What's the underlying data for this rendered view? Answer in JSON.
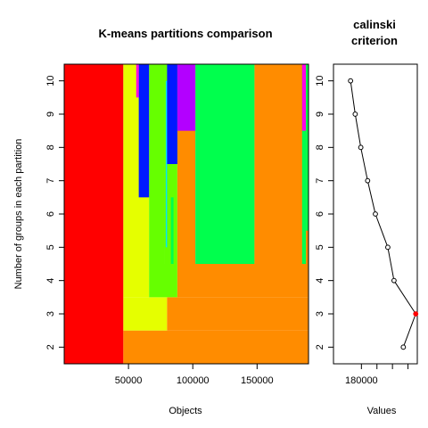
{
  "chart_data": [
    {
      "type": "heatmap",
      "title": "K-means partitions comparison",
      "xlabel": "Objects",
      "ylabel": "Number of groups in each partition",
      "xlim": [
        0,
        190000
      ],
      "ylim": [
        1.5,
        10.5
      ],
      "x_ticks": [
        50000,
        100000,
        150000
      ],
      "x_tick_labels": [
        "50000",
        "100000",
        "150000"
      ],
      "y_ticks": [
        2,
        3,
        4,
        5,
        6,
        7,
        8,
        9,
        10
      ],
      "y_tick_labels": [
        "2",
        "3",
        "4",
        "5",
        "6",
        "7",
        "8",
        "9",
        "10"
      ],
      "colors": {
        "red": "#ff0000",
        "orange": "#ff8c00",
        "yellow": "#e5ff00",
        "lime": "#66ff00",
        "green": "#00ff4d",
        "cyan": "#00e5ff",
        "blue": "#0019ff",
        "purple": "#b300ff",
        "magenta": "#ff00e6"
      },
      "cells": [
        {
          "x0": 0,
          "x1": 46000,
          "y0": 1.5,
          "y1": 10.5,
          "color": "red"
        },
        {
          "x0": 46000,
          "x1": 190000,
          "y0": 1.5,
          "y1": 2.5,
          "color": "orange"
        },
        {
          "x0": 46000,
          "x1": 80000,
          "y0": 2.5,
          "y1": 3.5,
          "color": "yellow"
        },
        {
          "x0": 80000,
          "x1": 190000,
          "y0": 2.5,
          "y1": 3.5,
          "color": "orange"
        },
        {
          "x0": 46000,
          "x1": 66000,
          "y0": 3.5,
          "y1": 4.5,
          "color": "yellow"
        },
        {
          "x0": 66000,
          "x1": 88000,
          "y0": 3.5,
          "y1": 4.5,
          "color": "lime"
        },
        {
          "x0": 88000,
          "x1": 190000,
          "y0": 3.5,
          "y1": 4.5,
          "color": "orange"
        },
        {
          "x0": 46000,
          "x1": 66000,
          "y0": 4.5,
          "y1": 10.5,
          "color": "yellow"
        },
        {
          "x0": 66000,
          "x1": 78000,
          "y0": 4.5,
          "y1": 10.5,
          "color": "lime"
        },
        {
          "x0": 78000,
          "x1": 88000,
          "y0": 4.5,
          "y1": 10.5,
          "color": "lime"
        },
        {
          "x0": 88000,
          "x1": 102000,
          "y0": 4.5,
          "y1": 10.5,
          "color": "orange"
        },
        {
          "x0": 102000,
          "x1": 148000,
          "y0": 4.5,
          "y1": 10.5,
          "color": "green"
        },
        {
          "x0": 148000,
          "x1": 186000,
          "y0": 4.5,
          "y1": 10.5,
          "color": "orange"
        },
        {
          "x0": 186000,
          "x1": 190000,
          "y0": 4.5,
          "y1": 10.5,
          "color": "orange"
        },
        {
          "x0": 58000,
          "x1": 66000,
          "y0": 6.5,
          "y1": 10.5,
          "color": "blue"
        },
        {
          "x0": 56000,
          "x1": 58000,
          "y0": 9.5,
          "y1": 10.5,
          "color": "magenta"
        },
        {
          "x0": 79000,
          "x1": 80000,
          "y0": 5.0,
          "y1": 10.0,
          "color": "cyan"
        },
        {
          "x0": 80000,
          "x1": 88000,
          "y0": 7.5,
          "y1": 10.5,
          "color": "blue"
        },
        {
          "x0": 88000,
          "x1": 102000,
          "y0": 8.5,
          "y1": 10.5,
          "color": "purple"
        },
        {
          "x0": 83000,
          "x1": 85000,
          "y0": 4.5,
          "y1": 6.5,
          "color": "green"
        },
        {
          "x0": 148000,
          "x1": 186000,
          "y0": 4.5,
          "y1": 5.5,
          "color": "orange"
        },
        {
          "x0": 185000,
          "x1": 188000,
          "y0": 4.5,
          "y1": 10.5,
          "color": "green"
        },
        {
          "x0": 185000,
          "x1": 188000,
          "y0": 8.5,
          "y1": 10.5,
          "color": "magenta"
        },
        {
          "x0": 188000,
          "x1": 190000,
          "y0": 5.5,
          "y1": 10.5,
          "color": "green"
        }
      ]
    },
    {
      "type": "line",
      "title": "calinski criterion",
      "title_lines": [
        "calinski",
        "criterion"
      ],
      "xlabel": "Values",
      "ylabel": "",
      "xlim": [
        171000,
        198000
      ],
      "ylim": [
        1.5,
        10.5
      ],
      "x_ticks": [
        180000,
        185000,
        190000,
        195000
      ],
      "x_tick_labels": [
        "180000"
      ],
      "y_ticks": [
        2,
        3,
        4,
        5,
        6,
        7,
        8,
        9,
        10
      ],
      "y_tick_labels": [
        "2",
        "3",
        "4",
        "5",
        "6",
        "7",
        "8",
        "9",
        "10"
      ],
      "series": [
        {
          "x": [
            193500,
            197500,
            190500,
            188500,
            184500,
            182000,
            179800,
            178000,
            176500
          ],
          "y": [
            2,
            3,
            4,
            5,
            6,
            7,
            8,
            9,
            10
          ]
        }
      ],
      "highlight": {
        "x": 197500,
        "y": 3,
        "color": "#ff0000"
      }
    }
  ]
}
